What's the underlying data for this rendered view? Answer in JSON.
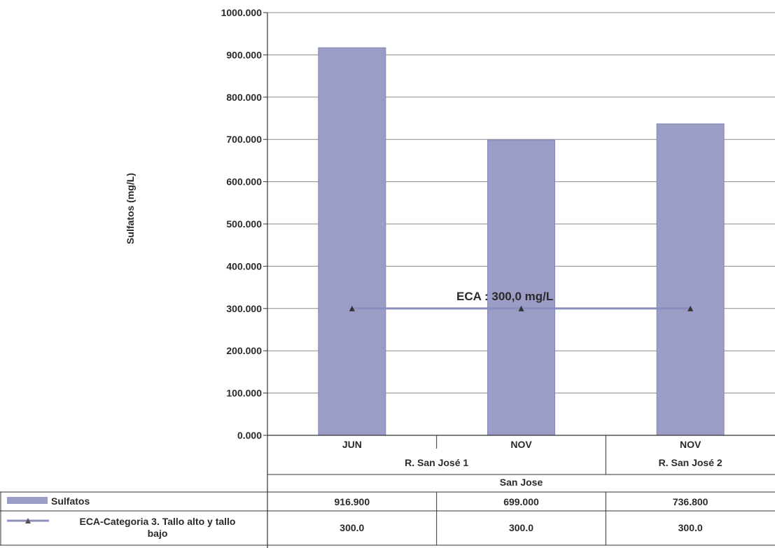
{
  "chart_data": {
    "type": "bar",
    "ylabel": "Sulfatos  (mg/L)",
    "ylim": [
      0,
      1000
    ],
    "ytick_step": 100,
    "ytick_labels": [
      "0.000",
      "100.000",
      "200.000",
      "300.000",
      "400.000",
      "500.000",
      "600.000",
      "700.000",
      "800.000",
      "900.000",
      "1000.000"
    ],
    "grid": true,
    "categories": [
      "JUN",
      "NOV",
      "NOV"
    ],
    "group_labels": [
      "R. San José 1",
      "R. San José 2"
    ],
    "top_group_label": "San Jose",
    "series": [
      {
        "name": "Sulfatos",
        "kind": "bar",
        "values": [
          916.9,
          699.0,
          736.8
        ],
        "value_labels": [
          "916.900",
          "699.000",
          "736.800"
        ],
        "color": "#9b9dc6"
      },
      {
        "name": "ECA-Categoria 3. Tallo alto y tallo bajo",
        "kind": "line",
        "values": [
          300.0,
          300.0,
          300.0
        ],
        "value_labels": [
          "300.0",
          "300.0",
          "300.0"
        ],
        "color": "#8b8fbf"
      }
    ],
    "annotation": "ECA  :  300,0 mg/L",
    "legend_placement": "data-table-left"
  }
}
